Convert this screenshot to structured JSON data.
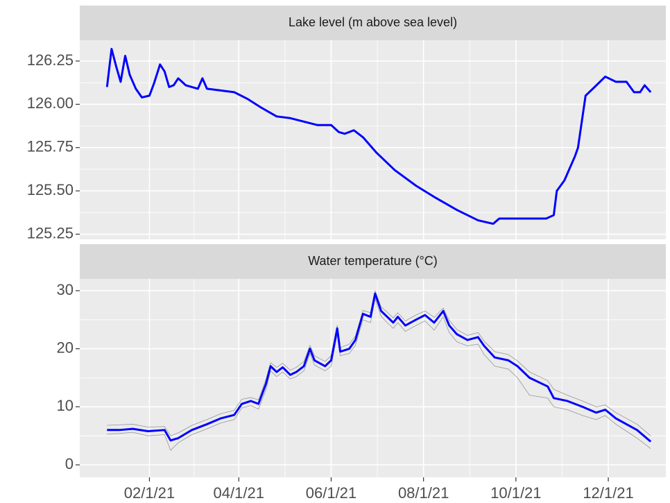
{
  "chart_data": [
    {
      "type": "line",
      "title": "Lake level (m above sea level)",
      "x": [
        "2021-01-04",
        "2021-01-07",
        "2021-01-10",
        "2021-01-13",
        "2021-01-16",
        "2021-01-19",
        "2021-01-23",
        "2021-01-27",
        "2021-02-01",
        "2021-02-04",
        "2021-02-08",
        "2021-02-11",
        "2021-02-14",
        "2021-02-17",
        "2021-02-20",
        "2021-02-25",
        "2021-03-05",
        "2021-03-08",
        "2021-03-11",
        "2021-03-20",
        "2021-03-29",
        "2021-04-07",
        "2021-04-16",
        "2021-04-26",
        "2021-05-05",
        "2021-05-14",
        "2021-05-23",
        "2021-06-01",
        "2021-06-06",
        "2021-06-10",
        "2021-06-16",
        "2021-06-22",
        "2021-07-01",
        "2021-07-13",
        "2021-07-27",
        "2021-08-09",
        "2021-08-23",
        "2021-09-06",
        "2021-09-16",
        "2021-09-20",
        "2021-09-29",
        "2021-10-08",
        "2021-10-21",
        "2021-10-26",
        "2021-10-28",
        "2021-11-02",
        "2021-11-09",
        "2021-11-11",
        "2021-11-16",
        "2021-11-22",
        "2021-11-29",
        "2021-12-06",
        "2021-12-13",
        "2021-12-18",
        "2021-12-22",
        "2021-12-25",
        "2021-12-29"
      ],
      "series": [
        {
          "color": "#0000ff",
          "values": [
            126.1,
            126.32,
            126.22,
            126.13,
            126.28,
            126.17,
            126.09,
            126.04,
            126.05,
            126.12,
            126.23,
            126.19,
            126.1,
            126.11,
            126.15,
            126.11,
            126.09,
            126.15,
            126.09,
            126.08,
            126.07,
            126.03,
            125.98,
            125.93,
            125.92,
            125.9,
            125.88,
            125.88,
            125.84,
            125.83,
            125.85,
            125.81,
            125.72,
            125.62,
            125.53,
            125.46,
            125.39,
            125.33,
            125.31,
            125.34,
            125.34,
            125.34,
            125.34,
            125.36,
            125.5,
            125.56,
            125.7,
            125.75,
            126.05,
            126.1,
            126.16,
            126.13,
            126.13,
            126.07,
            126.07,
            126.11,
            126.07
          ]
        }
      ],
      "ylim": [
        125.22,
        126.37
      ],
      "yticks": [
        125.25,
        {
          "value": 125.5,
          "label": "125.50"
        },
        125.75,
        {
          "value": 126,
          "label": "126.00"
        },
        126.25
      ],
      "grid": true
    },
    {
      "type": "line",
      "title": "Water temperature (°C)",
      "x": [
        "2021-01-04",
        "2021-01-12",
        "2021-01-21",
        "2021-01-31",
        "2021-02-11",
        "2021-02-15",
        "2021-02-20",
        "2021-03-01",
        "2021-03-11",
        "2021-03-20",
        "2021-03-29",
        "2021-04-03",
        "2021-04-09",
        "2021-04-14",
        "2021-04-19",
        "2021-04-22",
        "2021-04-26",
        "2021-04-30",
        "2021-05-05",
        "2021-05-09",
        "2021-05-14",
        "2021-05-18",
        "2021-05-21",
        "2021-05-28",
        "2021-06-01",
        "2021-06-05",
        "2021-06-07",
        "2021-06-13",
        "2021-06-17",
        "2021-06-22",
        "2021-06-27",
        "2021-06-30",
        "2021-07-04",
        "2021-07-08",
        "2021-07-12",
        "2021-07-15",
        "2021-07-20",
        "2021-07-27",
        "2021-08-02",
        "2021-08-08",
        "2021-08-14",
        "2021-08-18",
        "2021-08-23",
        "2021-08-30",
        "2021-09-06",
        "2021-09-10",
        "2021-09-17",
        "2021-09-26",
        "2021-10-02",
        "2021-10-10",
        "2021-10-22",
        "2021-10-26",
        "2021-11-04",
        "2021-11-14",
        "2021-11-23",
        "2021-11-29",
        "2021-12-06",
        "2021-12-13",
        "2021-12-20",
        "2021-12-29"
      ],
      "series": [
        {
          "color": "#808080",
          "values": [
            6.8,
            6.9,
            7.0,
            6.5,
            6.6,
            5.0,
            5.5,
            6.8,
            7.8,
            8.8,
            9.4,
            11.3,
            11.6,
            11.2,
            14.8,
            17.6,
            16.8,
            17.5,
            16.3,
            16.8,
            17.8,
            20.6,
            18.8,
            17.8,
            18.8,
            24.0,
            20.2,
            20.8,
            22.2,
            26.6,
            26.2,
            30.0,
            27.2,
            26.3,
            25.3,
            26.2,
            24.8,
            25.8,
            26.5,
            25.4,
            27.0,
            24.9,
            23.3,
            22.3,
            22.8,
            21.3,
            19.5,
            19.0,
            17.9,
            16.0,
            14.5,
            13.0,
            12.0,
            11.0,
            10.0,
            10.3,
            9.0,
            8.0,
            7.0,
            5.0
          ]
        },
        {
          "color": "#808080",
          "values": [
            5.3,
            5.4,
            5.6,
            5.0,
            5.2,
            2.5,
            3.8,
            5.2,
            6.2,
            7.2,
            7.8,
            9.8,
            10.2,
            9.6,
            13.0,
            16.2,
            15.2,
            16.0,
            14.8,
            15.2,
            16.2,
            19.2,
            17.2,
            16.2,
            17.0,
            22.5,
            18.8,
            19.2,
            20.6,
            25.0,
            24.5,
            28.6,
            25.6,
            24.5,
            23.5,
            24.5,
            23.0,
            24.0,
            24.8,
            23.2,
            25.5,
            22.8,
            21.2,
            20.5,
            20.8,
            19.0,
            17.0,
            16.5,
            15.0,
            12.0,
            11.5,
            10.0,
            9.5,
            8.5,
            7.8,
            8.5,
            7.0,
            5.8,
            4.6,
            2.8
          ]
        },
        {
          "color": "#0000ff",
          "values": [
            6.0,
            6.0,
            6.2,
            5.8,
            6.0,
            4.2,
            4.6,
            6.0,
            7.0,
            8.0,
            8.6,
            10.5,
            11.0,
            10.5,
            14.0,
            17.0,
            16.0,
            16.8,
            15.5,
            16.0,
            17.0,
            20.0,
            18.0,
            17.0,
            18.0,
            23.5,
            19.5,
            20.0,
            21.5,
            26.0,
            25.5,
            29.5,
            26.5,
            25.5,
            24.5,
            25.5,
            24.0,
            25.0,
            25.8,
            24.5,
            26.5,
            24.0,
            22.5,
            21.5,
            22.0,
            20.5,
            18.5,
            18.0,
            17.0,
            15.0,
            13.5,
            11.5,
            11.0,
            10.0,
            9.0,
            9.5,
            8.0,
            7.0,
            6.0,
            4.0
          ]
        }
      ],
      "ylim": [
        -2.15,
        32.03
      ],
      "yticks": [
        0,
        10,
        20,
        30
      ],
      "xlim": [
        "2020-12-17",
        "2022-01-08"
      ],
      "xticks": [
        {
          "value": "2021-02-01",
          "label": "02/1/21"
        },
        {
          "value": "2021-04-01",
          "label": "04/1/21"
        },
        {
          "value": "2021-06-01",
          "label": "06/1/21"
        },
        {
          "value": "2021-08-01",
          "label": "08/1/21"
        },
        {
          "value": "2021-10-01",
          "label": "10/1/21"
        },
        {
          "value": "2021-12-01",
          "label": "12/1/21"
        }
      ],
      "grid": true
    }
  ]
}
